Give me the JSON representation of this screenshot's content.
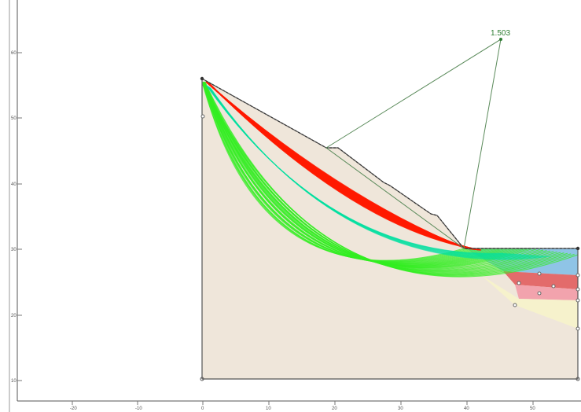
{
  "viewer": {
    "factor_of_safety": "1.503",
    "x_axis_ticks": [
      "-20",
      "-10",
      "0",
      "10",
      "20",
      "30",
      "40",
      "50"
    ],
    "y_axis_ticks": [
      "60",
      "50",
      "40",
      "30",
      "20",
      "10"
    ]
  },
  "colors": {
    "canvas_background": "#ffffff",
    "slope_material": "#efe6da",
    "critical_surfaces": "#ff1a00",
    "intermediate_surfaces": "#00e0a0",
    "safe_surfaces": "#33ee22",
    "layer_blue": "#8fc4e6",
    "layer_red": "#e36b6b",
    "layer_pink": "#f2a3ad",
    "layer_yellow": "#f6f2cc",
    "pointer_line": "#5a8a5a"
  }
}
